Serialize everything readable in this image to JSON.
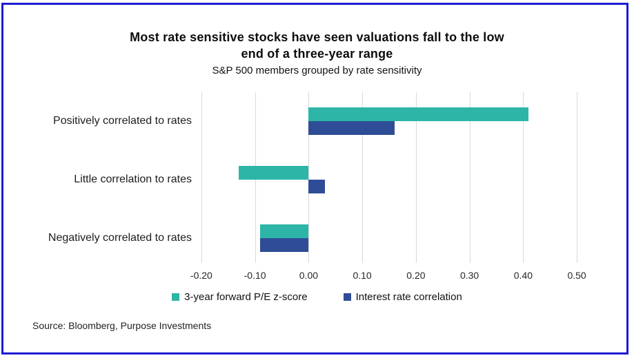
{
  "frame": {
    "border_color": "#1b1bd1",
    "background_color": "#ffffff"
  },
  "header": {
    "title_line1": "Most rate sensitive stocks have seen valuations fall to the low",
    "title_line2": "end of a three-year range",
    "subtitle": "S&P 500 members grouped by rate sensitivity"
  },
  "chart_data": {
    "type": "bar",
    "orientation": "horizontal",
    "title": "Most rate sensitive stocks have seen valuations fall to the low end of a three-year range",
    "subtitle": "S&P 500 members grouped by rate sensitivity",
    "categories": [
      "Positively correlated to rates",
      "Little correlation to rates",
      "Negatively correlated to rates"
    ],
    "series": [
      {
        "name": "3-year forward P/E z-score",
        "color": "#2db5a7",
        "values": [
          0.41,
          -0.13,
          -0.09
        ]
      },
      {
        "name": "Interest rate correlation",
        "color": "#2f4d96",
        "values": [
          0.16,
          0.03,
          -0.09
        ]
      }
    ],
    "xlim": [
      -0.25,
      0.55
    ],
    "xticks": [
      -0.2,
      -0.1,
      0.0,
      0.1,
      0.2,
      0.3,
      0.4,
      0.5
    ],
    "xtick_labels": [
      "-0.20",
      "-0.10",
      "0.00",
      "0.10",
      "0.20",
      "0.30",
      "0.40",
      "0.50"
    ],
    "grid": true,
    "gridline_color": "#d9d9d9",
    "legend_position": "bottom",
    "xlabel": "",
    "ylabel": ""
  },
  "footer": {
    "source": "Source: Bloomberg, Purpose Investments"
  }
}
